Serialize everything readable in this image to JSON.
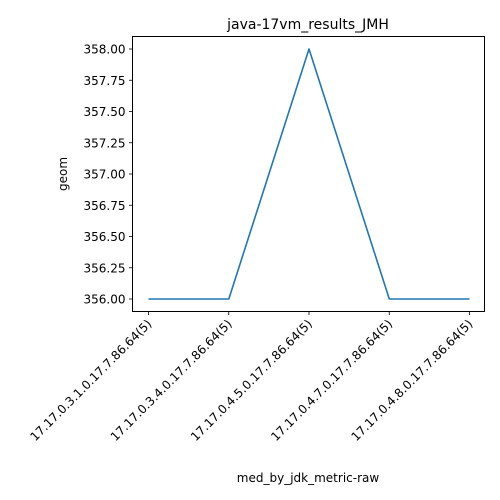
{
  "chart_data": {
    "type": "line",
    "title": "java-17vm_results_JMH",
    "xlabel": "med_by_jdk_metric-raw",
    "ylabel": "geom",
    "categories": [
      "17.17.0.3.1.0.17.7.86.64(5)",
      "17.17.0.3.4.0.17.7.86.64(5)",
      "17.17.0.4.5.0.17.7.86.64(5)",
      "17.17.0.4.7.0.17.7.86.64(5)",
      "17.17.0.4.8.0.17.7.86.64(5)"
    ],
    "series": [
      {
        "values": [
          356.0,
          356.0,
          358.0,
          356.0,
          356.0
        ],
        "color": "#1f77b4"
      }
    ],
    "ylim": [
      355.9,
      358.1
    ],
    "yticks": [
      "356.00",
      "356.25",
      "356.50",
      "356.75",
      "357.00",
      "357.25",
      "357.50",
      "357.75",
      "358.00"
    ],
    "grid": false,
    "legend": "none"
  }
}
